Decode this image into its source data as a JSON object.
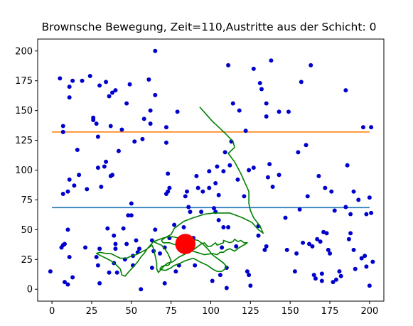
{
  "chart_data": {
    "type": "scatter",
    "title": "Brownsche Bewegung, Zeit=110,Austritte aus der Schicht: 0",
    "xlabel": "",
    "ylabel": "",
    "xlim": [
      -9,
      209
    ],
    "ylim": [
      -10,
      210
    ],
    "x_ticks": [
      0,
      25,
      50,
      75,
      100,
      125,
      150,
      175,
      200
    ],
    "y_ticks": [
      0,
      25,
      50,
      75,
      100,
      125,
      150,
      175,
      200
    ],
    "grid": false,
    "colors": {
      "particles": "#0000cc",
      "big_particle": "#ff0000",
      "path": "#008000",
      "upper_layer_line": "#ff7f0e",
      "lower_layer_line": "#1f77b4"
    },
    "layer_lines": [
      {
        "y": 132,
        "x": [
          0,
          200
        ],
        "color": "#ff7f0e"
      },
      {
        "y": 68.5,
        "x": [
          0,
          200
        ],
        "color": "#1f77b4"
      }
    ],
    "big_particle": {
      "x": 84,
      "y": 38,
      "radius": 8.5
    },
    "particles": [
      [
        -1,
        15
      ],
      [
        5,
        177
      ],
      [
        7,
        37
      ],
      [
        6,
        35
      ],
      [
        8,
        38
      ],
      [
        7,
        132
      ],
      [
        7,
        137
      ],
      [
        7,
        80
      ],
      [
        8,
        6
      ],
      [
        10,
        4
      ],
      [
        10,
        50
      ],
      [
        11,
        27
      ],
      [
        11,
        92
      ],
      [
        10,
        82
      ],
      [
        11,
        161
      ],
      [
        11,
        170
      ],
      [
        13,
        175
      ],
      [
        13,
        10
      ],
      [
        14,
        87
      ],
      [
        16,
        117
      ],
      [
        17,
        96
      ],
      [
        19,
        175
      ],
      [
        21,
        35
      ],
      [
        22,
        84
      ],
      [
        24,
        179
      ],
      [
        26,
        142
      ],
      [
        26,
        144
      ],
      [
        28,
        139
      ],
      [
        28,
        27
      ],
      [
        29,
        20
      ],
      [
        29,
        128
      ],
      [
        30,
        34
      ],
      [
        30,
        5
      ],
      [
        29,
        102
      ],
      [
        30,
        171
      ],
      [
        31,
        86
      ],
      [
        33,
        103
      ],
      [
        34,
        174
      ],
      [
        34,
        107
      ],
      [
        35,
        51
      ],
      [
        36,
        14
      ],
      [
        36,
        162
      ],
      [
        37,
        95
      ],
      [
        37,
        137
      ],
      [
        38,
        165
      ],
      [
        38,
        96
      ],
      [
        39,
        22
      ],
      [
        39,
        45
      ],
      [
        40,
        34
      ],
      [
        40,
        38
      ],
      [
        40,
        167
      ],
      [
        41,
        14
      ],
      [
        42,
        116
      ],
      [
        44,
        134
      ],
      [
        45,
        51
      ],
      [
        46,
        25
      ],
      [
        47,
        38
      ],
      [
        47,
        156
      ],
      [
        48,
        62
      ],
      [
        49,
        172
      ],
      [
        50,
        72
      ],
      [
        50,
        62
      ],
      [
        51,
        20
      ],
      [
        51,
        28
      ],
      [
        52,
        124
      ],
      [
        53,
        41
      ],
      [
        54,
        31
      ],
      [
        55,
        34
      ],
      [
        56,
        0
      ],
      [
        57,
        126
      ],
      [
        58,
        143
      ],
      [
        61,
        176
      ],
      [
        62,
        139
      ],
      [
        62,
        150
      ],
      [
        63,
        18
      ],
      [
        63,
        41
      ],
      [
        64,
        32
      ],
      [
        65,
        163
      ],
      [
        65,
        200
      ],
      [
        65,
        50
      ],
      [
        68,
        30
      ],
      [
        71,
        35
      ],
      [
        71,
        5
      ],
      [
        72,
        80
      ],
      [
        72,
        136
      ],
      [
        72,
        123
      ],
      [
        73,
        97
      ],
      [
        73,
        82
      ],
      [
        74,
        43
      ],
      [
        74,
        85
      ],
      [
        77,
        54
      ],
      [
        78,
        15
      ],
      [
        79,
        149
      ],
      [
        80,
        20
      ],
      [
        82,
        38
      ],
      [
        83,
        52
      ],
      [
        84,
        78
      ],
      [
        85,
        82
      ],
      [
        86,
        69
      ],
      [
        87,
        65
      ],
      [
        89,
        43
      ],
      [
        90,
        20
      ],
      [
        91,
        95
      ],
      [
        92,
        85
      ],
      [
        94,
        65
      ],
      [
        95,
        82
      ],
      [
        99,
        99
      ],
      [
        99,
        85
      ],
      [
        101,
        7
      ],
      [
        102,
        68
      ],
      [
        103,
        65
      ],
      [
        103,
        89
      ],
      [
        104,
        103
      ],
      [
        105,
        79
      ],
      [
        105,
        58
      ],
      [
        106,
        12
      ],
      [
        107,
        35
      ],
      [
        108,
        52
      ],
      [
        108,
        99
      ],
      [
        109,
        115
      ],
      [
        110,
        18
      ],
      [
        110,
        1
      ],
      [
        111,
        52
      ],
      [
        111,
        188
      ],
      [
        112,
        104
      ],
      [
        113,
        124
      ],
      [
        114,
        156
      ],
      [
        116,
        36
      ],
      [
        117,
        92
      ],
      [
        118,
        150
      ],
      [
        121,
        78
      ],
      [
        122,
        133
      ],
      [
        123,
        15
      ],
      [
        124,
        12
      ],
      [
        124,
        100
      ],
      [
        125,
        3
      ],
      [
        127,
        102
      ],
      [
        127,
        185
      ],
      [
        130,
        45
      ],
      [
        130,
        53
      ],
      [
        131,
        173
      ],
      [
        132,
        168
      ],
      [
        134,
        33
      ],
      [
        135,
        36
      ],
      [
        135,
        145
      ],
      [
        135,
        156
      ],
      [
        136,
        94
      ],
      [
        137,
        105
      ],
      [
        138,
        192
      ],
      [
        139,
        86
      ],
      [
        143,
        96
      ],
      [
        143,
        149
      ],
      [
        147,
        60
      ],
      [
        148,
        33
      ],
      [
        149,
        149
      ],
      [
        153,
        15
      ],
      [
        154,
        30
      ],
      [
        155,
        115
      ],
      [
        156,
        67
      ],
      [
        157,
        174
      ],
      [
        158,
        39
      ],
      [
        160,
        121
      ],
      [
        161,
        78
      ],
      [
        162,
        38
      ],
      [
        163,
        188
      ],
      [
        164,
        36
      ],
      [
        165,
        12
      ],
      [
        166,
        9
      ],
      [
        167,
        42
      ],
      [
        168,
        95
      ],
      [
        169,
        40
      ],
      [
        170,
        7
      ],
      [
        170,
        13
      ],
      [
        171,
        48
      ],
      [
        172,
        85
      ],
      [
        173,
        47
      ],
      [
        174,
        33
      ],
      [
        175,
        30
      ],
      [
        176,
        82
      ],
      [
        177,
        6
      ],
      [
        178,
        66
      ],
      [
        179,
        8
      ],
      [
        181,
        15
      ],
      [
        182,
        11
      ],
      [
        185,
        167
      ],
      [
        185,
        69
      ],
      [
        186,
        104
      ],
      [
        187,
        42
      ],
      [
        188,
        47
      ],
      [
        188,
        63
      ],
      [
        190,
        82
      ],
      [
        190,
        33
      ],
      [
        191,
        17
      ],
      [
        193,
        75
      ],
      [
        195,
        26
      ],
      [
        196,
        136
      ],
      [
        197,
        28
      ],
      [
        198,
        19
      ],
      [
        198,
        63
      ],
      [
        200,
        3
      ],
      [
        200,
        77
      ],
      [
        202,
        23
      ],
      [
        201,
        64
      ],
      [
        201,
        136
      ]
    ],
    "path": [
      [
        93,
        153
      ],
      [
        97,
        147
      ],
      [
        101,
        141
      ],
      [
        105,
        136
      ],
      [
        109,
        131
      ],
      [
        114,
        124
      ],
      [
        115,
        119
      ],
      [
        111,
        114
      ],
      [
        115,
        107
      ],
      [
        119,
        97
      ],
      [
        122,
        88
      ],
      [
        124,
        82
      ],
      [
        124,
        72
      ],
      [
        125,
        66
      ],
      [
        127,
        60
      ],
      [
        131,
        53
      ],
      [
        133,
        47
      ],
      [
        130,
        50
      ],
      [
        126,
        56
      ],
      [
        120,
        60
      ],
      [
        112,
        64
      ],
      [
        102,
        64
      ],
      [
        96,
        63
      ],
      [
        89,
        60
      ],
      [
        83,
        57
      ],
      [
        77,
        51
      ],
      [
        75,
        46
      ],
      [
        71,
        43
      ],
      [
        69,
        41
      ],
      [
        70,
        39
      ],
      [
        74,
        39
      ],
      [
        76,
        38
      ],
      [
        81,
        36
      ],
      [
        86,
        33
      ],
      [
        91,
        31
      ],
      [
        96,
        29
      ],
      [
        101,
        30
      ],
      [
        104,
        29
      ],
      [
        106,
        31
      ],
      [
        108,
        31
      ],
      [
        110,
        33
      ],
      [
        112,
        34
      ],
      [
        115,
        32
      ],
      [
        118,
        35
      ],
      [
        122,
        38
      ],
      [
        123,
        39
      ],
      [
        121,
        39
      ],
      [
        119,
        41
      ],
      [
        117,
        40
      ],
      [
        115,
        42
      ],
      [
        114,
        40
      ],
      [
        112,
        39
      ],
      [
        110,
        40
      ],
      [
        108,
        41
      ],
      [
        108,
        39
      ],
      [
        106,
        38
      ],
      [
        104,
        37
      ],
      [
        103,
        39
      ],
      [
        102,
        38
      ],
      [
        100,
        36
      ],
      [
        98,
        36
      ],
      [
        96,
        39
      ],
      [
        94,
        38
      ],
      [
        92,
        36
      ],
      [
        89,
        33
      ],
      [
        86,
        31
      ],
      [
        83,
        29
      ],
      [
        80,
        27
      ],
      [
        78,
        25
      ],
      [
        76,
        23
      ],
      [
        73,
        22
      ],
      [
        71,
        20
      ],
      [
        69,
        19
      ],
      [
        68,
        17
      ],
      [
        70,
        16
      ],
      [
        72,
        16
      ],
      [
        75,
        18
      ],
      [
        77,
        20
      ],
      [
        81,
        22
      ],
      [
        84,
        24
      ],
      [
        89,
        26
      ],
      [
        93,
        23
      ],
      [
        98,
        20
      ],
      [
        101,
        17
      ],
      [
        104,
        15
      ],
      [
        107,
        15
      ],
      [
        109,
        17
      ],
      [
        110,
        19
      ],
      [
        108,
        22
      ],
      [
        105,
        25
      ],
      [
        101,
        29
      ],
      [
        98,
        34
      ],
      [
        95,
        38
      ],
      [
        92,
        41
      ],
      [
        88,
        42
      ],
      [
        84,
        43
      ],
      [
        80,
        43
      ],
      [
        76,
        44
      ],
      [
        73,
        44
      ],
      [
        70,
        43
      ],
      [
        68,
        42
      ],
      [
        64,
        40
      ],
      [
        62,
        37
      ],
      [
        60,
        34
      ],
      [
        58,
        30
      ],
      [
        56,
        27
      ],
      [
        54,
        23
      ],
      [
        52,
        20
      ],
      [
        50,
        17
      ],
      [
        48,
        14
      ],
      [
        46,
        11
      ],
      [
        44,
        12
      ],
      [
        43,
        17
      ],
      [
        40,
        21
      ],
      [
        37,
        24
      ],
      [
        34,
        26
      ],
      [
        31,
        28
      ],
      [
        28,
        30
      ],
      [
        30,
        31
      ],
      [
        34,
        30
      ],
      [
        37,
        30
      ],
      [
        40,
        28
      ],
      [
        43,
        26
      ],
      [
        47,
        26
      ],
      [
        50,
        28
      ],
      [
        53,
        29
      ],
      [
        56,
        31
      ],
      [
        59,
        33
      ],
      [
        61,
        35
      ],
      [
        63,
        37
      ],
      [
        64,
        34
      ],
      [
        65,
        28
      ],
      [
        66,
        22
      ],
      [
        66,
        17
      ],
      [
        67,
        14
      ],
      [
        69,
        17
      ],
      [
        71,
        20
      ],
      [
        73,
        20
      ],
      [
        74,
        21
      ],
      [
        75,
        24
      ],
      [
        74,
        27
      ],
      [
        73,
        30
      ],
      [
        71,
        34
      ],
      [
        69,
        37
      ],
      [
        67,
        38
      ],
      [
        64,
        40
      ]
    ]
  }
}
